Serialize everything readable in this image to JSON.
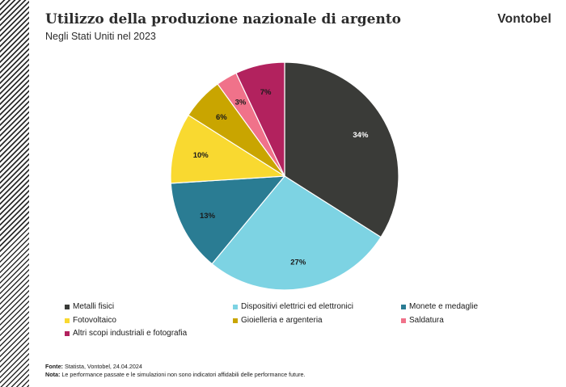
{
  "brand": "Vontobel",
  "colors": {
    "text": "#2b2b2b"
  },
  "chart_data": {
    "type": "pie",
    "title": "Utilizzo della produzione nazionale di argento",
    "subtitle": "Negli Stati Uniti nel 2023",
    "slices": [
      {
        "label": "Metalli fisici",
        "value": 34,
        "value_label": "34%",
        "color": "#3a3b38"
      },
      {
        "label": "Dispositivi elettrici ed elettronici",
        "value": 27,
        "value_label": "27%",
        "color": "#7dd3e3"
      },
      {
        "label": "Monete e medaglie",
        "value": 13,
        "value_label": "13%",
        "color": "#2a7c93"
      },
      {
        "label": "Fotovoltaico",
        "value": 10,
        "value_label": "10%",
        "color": "#f9d930"
      },
      {
        "label": "Gioielleria e argenteria",
        "value": 6,
        "value_label": "6%",
        "color": "#c9a500"
      },
      {
        "label": "Saldatura",
        "value": 3,
        "value_label": "3%",
        "color": "#f0728a"
      },
      {
        "label": "Altri scopi industriali e fotografia",
        "value": 7,
        "value_label": "7%",
        "color": "#b2225e"
      }
    ],
    "legend_placement": "bottom"
  },
  "footer": {
    "source_label": "Fonte:",
    "source_text": "Statista, Vontobel, 24.04.2024",
    "note_label": "Nota:",
    "note_text": "Le performance passate e le simulazioni non sono indicatori affidabili delle performance future."
  }
}
